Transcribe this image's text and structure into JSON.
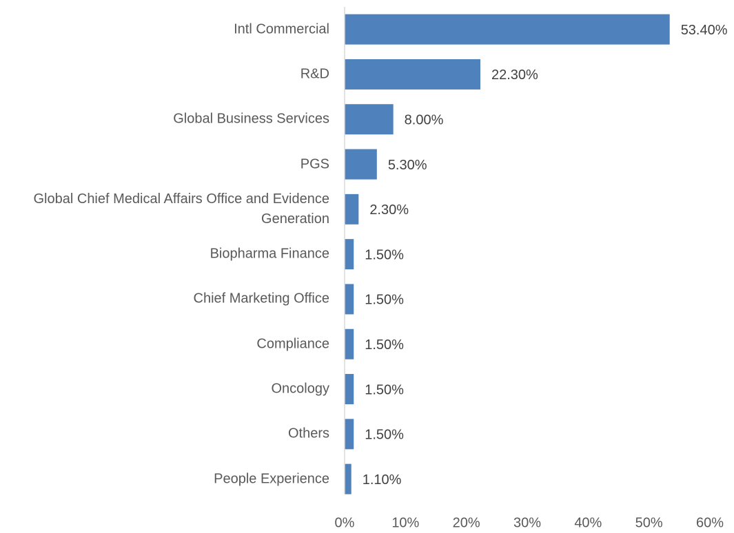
{
  "chart_data": {
    "type": "barh",
    "categories": [
      "Intl Commercial",
      "R&D",
      "Global Business Services",
      "PGS",
      "Global Chief Medical Affairs Office and Evidence Generation",
      "Biopharma Finance",
      "Chief Marketing Office",
      "Compliance",
      "Oncology",
      "Others",
      "People Experience"
    ],
    "values": [
      53.4,
      22.3,
      8.0,
      5.3,
      2.3,
      1.5,
      1.5,
      1.5,
      1.5,
      1.5,
      1.1
    ],
    "value_labels": [
      "53.40%",
      "22.30%",
      "8.00%",
      "5.30%",
      "2.30%",
      "1.50%",
      "1.50%",
      "1.50%",
      "1.50%",
      "1.50%",
      "1.10%"
    ],
    "color": "#4f81bd",
    "xlim": [
      0,
      60
    ],
    "xticks": [
      {
        "value": 0,
        "label": "0%"
      },
      {
        "value": 10,
        "label": "10%"
      },
      {
        "value": 20,
        "label": "20%"
      },
      {
        "value": 30,
        "label": "30%"
      },
      {
        "value": 40,
        "label": "40%"
      },
      {
        "value": 50,
        "label": "50%"
      },
      {
        "value": 60,
        "label": "60%"
      }
    ],
    "grid": false
  }
}
